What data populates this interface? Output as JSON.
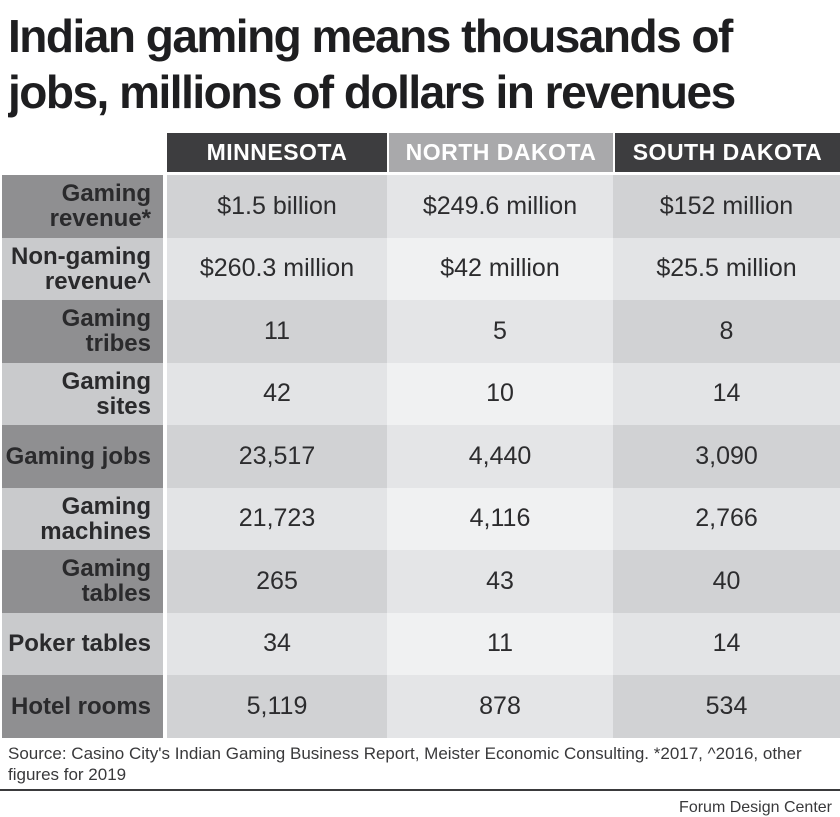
{
  "title": {
    "line1": "Indian gaming means thousands of",
    "line2": "jobs, millions of dollars in revenues"
  },
  "chart_data": {
    "type": "table",
    "title": "Indian gaming means thousands of jobs, millions of dollars in revenues",
    "columns": [
      "MINNESOTA",
      "NORTH DAKOTA",
      "SOUTH DAKOTA"
    ],
    "rows": [
      {
        "label": "Gaming revenue*",
        "values": [
          "$1.5 billion",
          "$249.6 million",
          "$152 million"
        ]
      },
      {
        "label": "Non-gaming revenue^",
        "values": [
          "$260.3 million",
          "$42 million",
          "$25.5 million"
        ]
      },
      {
        "label": "Gaming tribes",
        "values": [
          "11",
          "5",
          "8"
        ]
      },
      {
        "label": "Gaming sites",
        "values": [
          "42",
          "10",
          "14"
        ]
      },
      {
        "label": "Gaming jobs",
        "values": [
          "23,517",
          "4,440",
          "3,090"
        ]
      },
      {
        "label": "Gaming machines",
        "values": [
          "21,723",
          "4,116",
          "2,766"
        ]
      },
      {
        "label": "Gaming tables",
        "values": [
          "265",
          "43",
          "40"
        ]
      },
      {
        "label": "Poker tables",
        "values": [
          "34",
          "11",
          "14"
        ]
      },
      {
        "label": "Hotel rooms",
        "values": [
          "5,119",
          "878",
          "534"
        ]
      }
    ],
    "notes": "*2017, ^2016, other figures for 2019"
  },
  "footer": {
    "source": "Source: Casino City's Indian Gaming Business Report, Meister Economic Consulting. *2017, ^2016, other figures for 2019",
    "credit": "Forum Design Center"
  },
  "colors": {
    "header-dark": "#3d3d3f",
    "header-mid": "#a9a9ab",
    "label-dark": "#8f8f91",
    "label-light": "#c9cacc",
    "cell-dark": "#d1d2d4",
    "cell-mid": "#e3e4e6",
    "cell-light-mid": "#e4e5e7",
    "cell-light": "#f0f1f2"
  }
}
